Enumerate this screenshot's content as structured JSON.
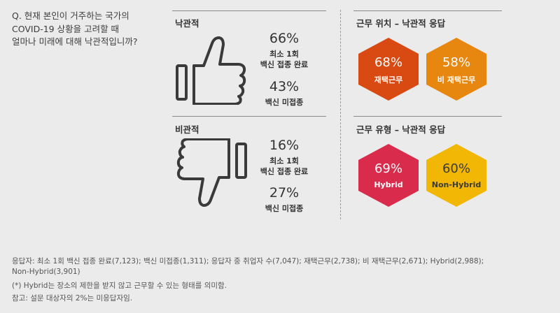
{
  "question": {
    "line1": "Q. 현재 본인이 거주하는 국가의",
    "line2": "COVID-19 상황을 고려할 때",
    "line3": "얼마나 미래에 대해 낙관적입니까?"
  },
  "optimistic": {
    "title": "낙관적",
    "icon": "thumbs-up-icon",
    "stat1_pct": "66%",
    "stat1_label1": "최소 1회",
    "stat1_label2": "백신 접종 완료",
    "stat2_pct": "43%",
    "stat2_label": "백신 미접종"
  },
  "pessimistic": {
    "title": "비관적",
    "icon": "thumbs-down-icon",
    "stat1_pct": "16%",
    "stat1_label1": "최소 1회",
    "stat1_label2": "백신 접종 완료",
    "stat2_pct": "27%",
    "stat2_label": "백신 미접종"
  },
  "location": {
    "title": "근무 위치 – 낙관적 응답",
    "remote_pct": "68%",
    "remote_label": "재택근무",
    "remote_color": "#d84a12",
    "nonremote_pct": "58%",
    "nonremote_label": "비 재택근무",
    "nonremote_color": "#e8870f"
  },
  "type": {
    "title": "근무 유형 – 낙관적 응답",
    "hybrid_pct": "69%",
    "hybrid_label": "Hybrid",
    "hybrid_color": "#d92b4b",
    "nonhybrid_pct": "60%",
    "nonhybrid_label": "Non-Hybrid",
    "nonhybrid_color": "#f2b705"
  },
  "footer": {
    "line1": "응답자: 최소 1회 백신 접종 완료(7,123); 백신 미접종(1,311); 응답자 중 취업자 수(7,047); 재택근무(2,738); 비 재택근무(2,671); Hybrid(2,988);",
    "line2": "Non-Hybrid(3,901)",
    "line3": "(*) Hybrid는 장소의 제한을 받지 않고 근무할 수 있는 형태를 의미함.",
    "line4": "참고: 설문 대상자의 2%는 미응답자임."
  }
}
